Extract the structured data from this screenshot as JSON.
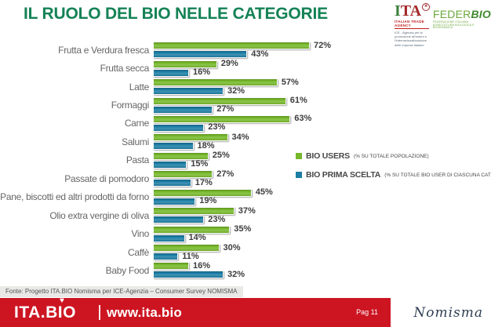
{
  "header": {
    "title": "IL RUOLO DEL BIO NELLE CATEGORIE",
    "ita_logo": {
      "i": "I",
      "ta": "TA",
      "mark": "✳",
      "subtitle": "ITALIAN TRADE AGENCY",
      "tagline1": "ICE - Agenzia per la promozione all'estero e",
      "tagline2": "l'internazionalizzazione delle imprese italiane"
    },
    "federbio_logo": {
      "feder": "FEDER",
      "bio": "BIO",
      "tagline": "FEDERAZIONE ITALIANA AGRICOLTURA BIOLOGICA E BIODINAMICA"
    }
  },
  "colors": {
    "title_green": "#148255",
    "bar_green": "#76b82a",
    "bar_blue": "#1b7da4",
    "footer_red": "#cd1522"
  },
  "chart_data": {
    "type": "bar",
    "orientation": "horizontal",
    "value_suffix": "%",
    "xlim": [
      0,
      80
    ],
    "grid": false,
    "legend_position": "middle-right",
    "categories": [
      "Frutta e Verdura fresca",
      "Frutta secca",
      "Latte",
      "Formaggi",
      "Carne",
      "Salumi",
      "Pasta",
      "Passate di pomodoro",
      "Pane, biscotti ed altri prodotti da forno",
      "Olio extra vergine di oliva",
      "Vino",
      "Caffè",
      "Baby Food"
    ],
    "series": [
      {
        "name": "BIO USERS",
        "note": "(% SU TOTALE POPOLAZIONE)",
        "color": "#76b82a",
        "values": [
          72,
          29,
          57,
          61,
          63,
          34,
          25,
          27,
          45,
          37,
          35,
          30,
          16
        ]
      },
      {
        "name": "BIO PRIMA SCELTA",
        "note": "(% SU TOTALE BIO USER DI CIASCUNA CATEGORIA)",
        "color": "#1b7da4",
        "values": [
          43,
          16,
          32,
          27,
          23,
          18,
          15,
          17,
          19,
          23,
          14,
          11,
          32
        ]
      }
    ]
  },
  "footer": {
    "source": "Fonte: Progetto ITA.BIO Nomisma per ICE-Agenzia – Consumer Survey NOMISMA",
    "brand": "ITA.BIO",
    "heart_icon": "♥",
    "url": "www.ita.bio",
    "page": "Pag 11",
    "nomisma": "Nomisma"
  }
}
